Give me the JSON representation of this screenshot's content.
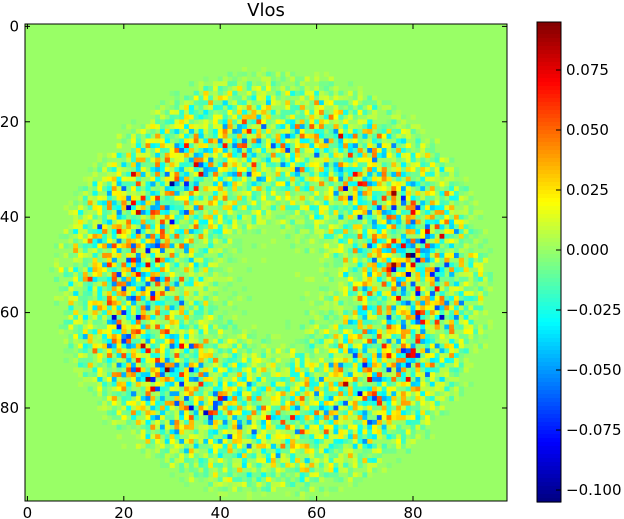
{
  "chart_data": {
    "type": "heatmap",
    "title": "Vlos",
    "xlabel": "",
    "ylabel": "",
    "shape": [
      100,
      100
    ],
    "xlim": [
      0,
      99
    ],
    "ylim": [
      99,
      0
    ],
    "x_ticks": [
      0,
      20,
      40,
      60,
      80
    ],
    "y_ticks": [
      0,
      20,
      40,
      60,
      80
    ],
    "x_tick_labels": [
      "0",
      "20",
      "40",
      "60",
      "80"
    ],
    "y_tick_labels": [
      "0",
      "20",
      "40",
      "60",
      "80"
    ],
    "colormap": "jet",
    "background_value": 0.0,
    "pattern": {
      "description_free": true,
      "center": [
        51,
        54
      ],
      "inner_radius": 12,
      "outer_radius": 48,
      "ring_peak_radius": 29,
      "ring_peak_x_positions": [
        25,
        78
      ],
      "ring_peak_rows": [
        48,
        53
      ],
      "amplitude_range": [
        -0.1,
        0.1
      ]
    },
    "colorbar": {
      "vmin": -0.105,
      "vmax": 0.095,
      "ticks": [
        0.075,
        0.05,
        0.025,
        0.0,
        -0.025,
        -0.05,
        -0.075,
        -0.1
      ],
      "tick_labels": [
        "0.075",
        "0.050",
        "0.025",
        "0.000",
        "−0.025",
        "−0.050",
        "−0.075",
        "−0.100"
      ]
    },
    "grid": false,
    "legend": "none"
  }
}
